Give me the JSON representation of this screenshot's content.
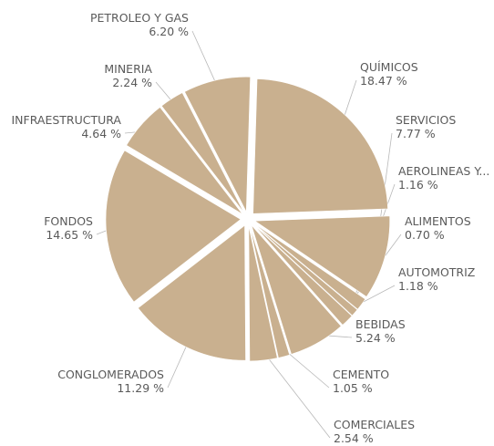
{
  "chart_data": {
    "type": "pie",
    "title": "",
    "slice_color": "#c9b08f",
    "slices": [
      {
        "name": "QUÍMICOS",
        "value": 18.47,
        "label": "18.47 %"
      },
      {
        "name": "SERVICIOS",
        "value": 7.77,
        "label": "7.77 %"
      },
      {
        "name": "AEROLINEAS Y...",
        "value": 1.16,
        "label": "1.16 %"
      },
      {
        "name": "ALIMENTOS",
        "value": 0.7,
        "label": "0.70 %"
      },
      {
        "name": "AUTOMOTRIZ",
        "value": 1.18,
        "label": "1.18 %"
      },
      {
        "name": "BEBIDAS",
        "value": 5.24,
        "label": "5.24 %"
      },
      {
        "name": "CEMENTO",
        "value": 1.05,
        "label": "1.05 %"
      },
      {
        "name": "COMERCIALES",
        "value": 2.54,
        "label": "2.54 %"
      },
      {
        "name": "CONGLOMERADOS",
        "value": 11.29,
        "label": "11.29 %"
      },
      {
        "name": "FONDOS",
        "value": 14.65,
        "label": "14.65 %"
      },
      {
        "name": "INFRAESTRUCTURA",
        "value": 4.64,
        "label": "4.64 %"
      },
      {
        "name": "MINERIA",
        "value": 2.24,
        "label": "2.24 %"
      },
      {
        "name": "PETROLEO Y GAS",
        "value": 6.2,
        "label": "6.20 %"
      }
    ]
  }
}
